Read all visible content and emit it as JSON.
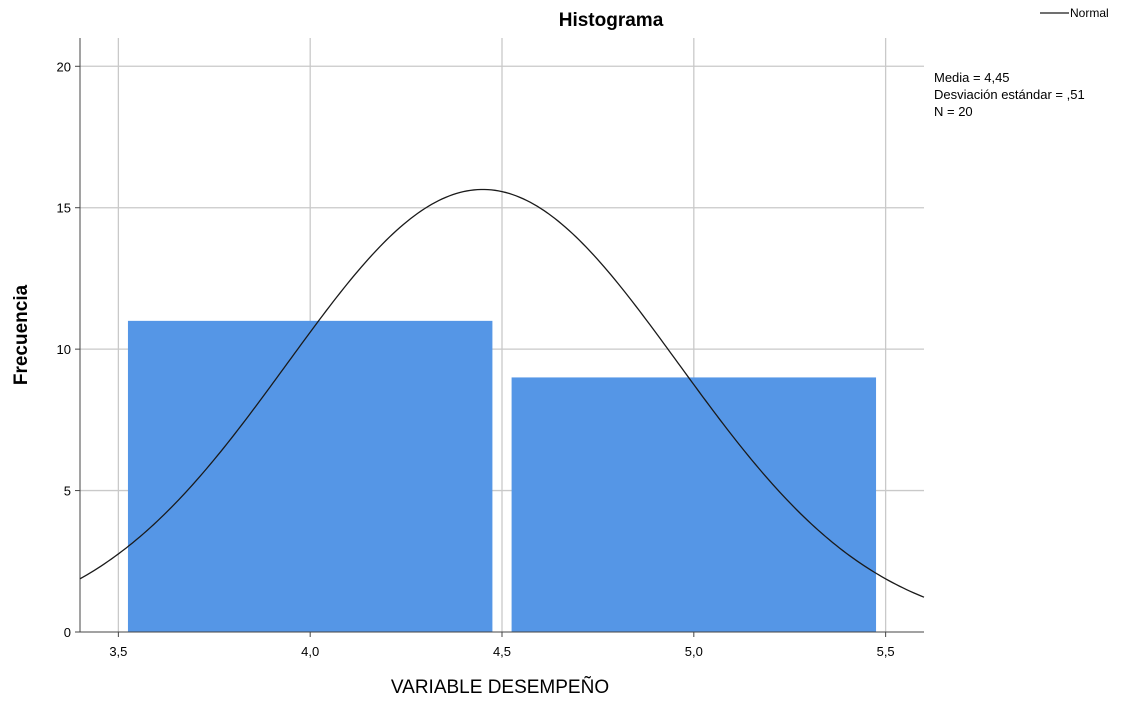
{
  "chart_data": {
    "type": "bar",
    "title": "Histograma",
    "xlabel": "VARIABLE DESEMPEÑO",
    "ylabel": "Frecuencia",
    "xlim": [
      3.4,
      5.6
    ],
    "ylim": [
      0,
      21
    ],
    "x_ticks": [
      {
        "value": 3.5,
        "label": "3,5"
      },
      {
        "value": 4.0,
        "label": "4,0"
      },
      {
        "value": 4.5,
        "label": "4,5"
      },
      {
        "value": 5.0,
        "label": "5,0"
      },
      {
        "value": 5.5,
        "label": "5,5"
      }
    ],
    "y_ticks": [
      {
        "value": 0,
        "label": "0"
      },
      {
        "value": 5,
        "label": "5"
      },
      {
        "value": 10,
        "label": "10"
      },
      {
        "value": 15,
        "label": "15"
      },
      {
        "value": 20,
        "label": "20"
      }
    ],
    "bins": [
      {
        "from": 3.525,
        "to": 4.475,
        "count": 11
      },
      {
        "from": 4.525,
        "to": 5.475,
        "count": 9
      }
    ],
    "normal_curve": {
      "mean": 4.45,
      "sd": 0.51,
      "n": 20,
      "bin_width": 1.0
    },
    "grid": true,
    "legend": {
      "position": "top-right",
      "entries": [
        "Normal"
      ]
    },
    "stats": [
      "Media = 4,45",
      "Desviación estándar = ,51",
      "N = 20"
    ]
  }
}
